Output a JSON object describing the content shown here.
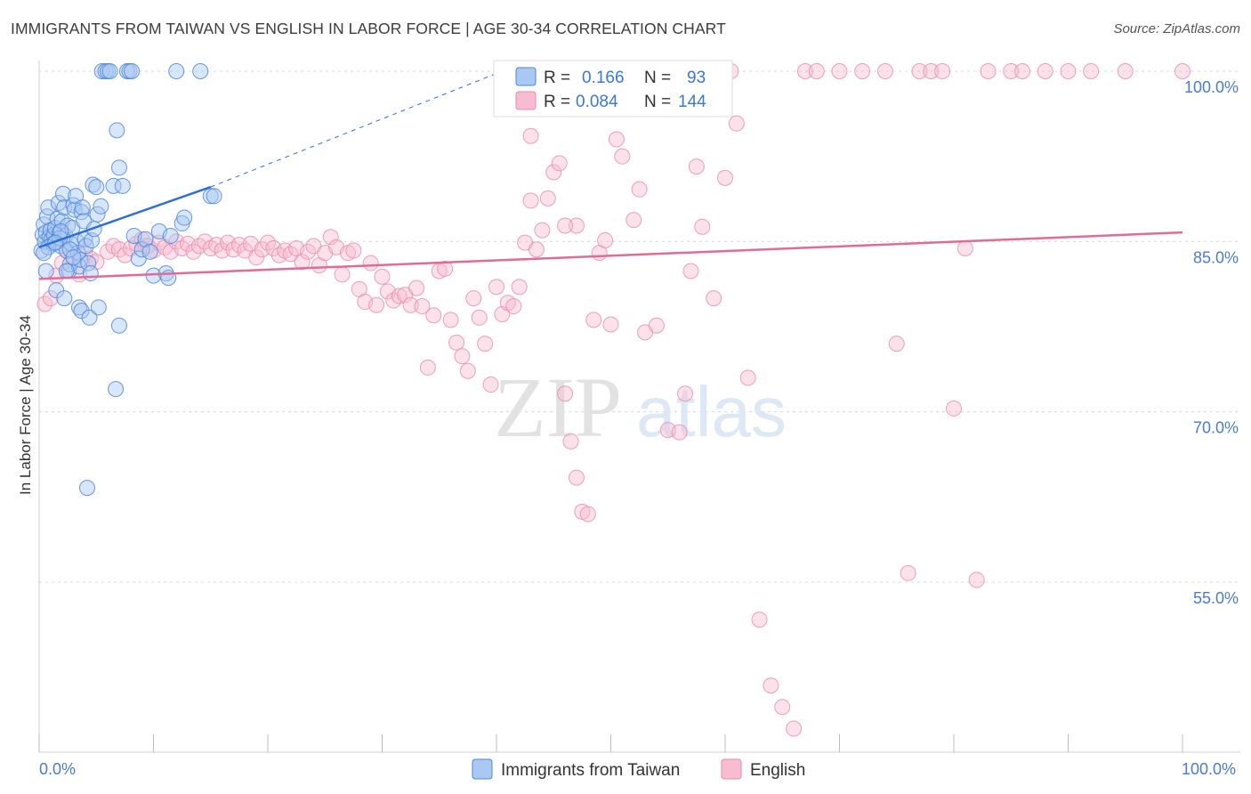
{
  "header": {
    "title": "IMMIGRANTS FROM TAIWAN VS ENGLISH IN LABOR FORCE | AGE 30-34 CORRELATION CHART",
    "source": "Source: ZipAtlas.com"
  },
  "watermark": {
    "zip": "ZIP",
    "atlas": "atlas"
  },
  "colors": {
    "taiwan_fill": "#a9c8f2",
    "taiwan_stroke": "#4f86da",
    "taiwan_line": "#2f6fd6",
    "english_fill": "#f7bcd0",
    "english_stroke": "#e98aa9",
    "english_line": "#e06c96",
    "grid": "#d8d8d8",
    "axis_label": "#4a7bd0"
  },
  "stats_box": {
    "rows": [
      {
        "r_label": "R =",
        "r_value": "0.166",
        "n_label": "N =",
        "n_value": "93"
      },
      {
        "r_label": "R =",
        "r_value": "0.084",
        "n_label": "N =",
        "n_value": "144"
      }
    ]
  },
  "chart_data": {
    "type": "scatter",
    "xlabel": "",
    "ylabel": "In Labor Force | Age 30-34",
    "xlim": [
      0,
      100
    ],
    "ylim": [
      40,
      102
    ],
    "x_tick_labels": [
      "0.0%",
      "100.0%"
    ],
    "y_tick_labels": [
      {
        "value": 100,
        "label": "100.0%"
      },
      {
        "value": 85,
        "label": "85.0%"
      },
      {
        "value": 70,
        "label": "70.0%"
      },
      {
        "value": 55,
        "label": "55.0%"
      }
    ],
    "grid": true,
    "legend_position": "bottom-center",
    "series": [
      {
        "name": "Immigrants from Taiwan",
        "trend": {
          "x": [
            0,
            15
          ],
          "y": [
            84.5,
            89.8
          ],
          "extended_to": [
            40,
            99.8
          ]
        },
        "points": [
          [
            0.2,
            84.2
          ],
          [
            0.3,
            85.6
          ],
          [
            0.4,
            86.5
          ],
          [
            0.5,
            85.0
          ],
          [
            0.6,
            85.8
          ],
          [
            0.7,
            87.2
          ],
          [
            0.8,
            88.0
          ],
          [
            0.9,
            85.4
          ],
          [
            1.0,
            86.0
          ],
          [
            1.1,
            85.2
          ],
          [
            1.2,
            84.8
          ],
          [
            1.3,
            85.6
          ],
          [
            1.4,
            86.2
          ],
          [
            1.5,
            85.0
          ],
          [
            1.6,
            87.0
          ],
          [
            1.7,
            88.4
          ],
          [
            1.8,
            85.8
          ],
          [
            1.9,
            84.6
          ],
          [
            2.0,
            86.8
          ],
          [
            2.1,
            89.2
          ],
          [
            2.2,
            88.0
          ],
          [
            2.3,
            85.5
          ],
          [
            2.4,
            84.2
          ],
          [
            2.5,
            86.4
          ],
          [
            2.6,
            82.4
          ],
          [
            2.7,
            83.0
          ],
          [
            2.8,
            84.8
          ],
          [
            2.9,
            86.2
          ],
          [
            3.0,
            88.2
          ],
          [
            3.1,
            87.8
          ],
          [
            3.2,
            89.0
          ],
          [
            3.3,
            85.0
          ],
          [
            3.4,
            84.0
          ],
          [
            3.5,
            82.8
          ],
          [
            3.6,
            83.4
          ],
          [
            3.7,
            87.6
          ],
          [
            3.8,
            88.0
          ],
          [
            3.9,
            86.8
          ],
          [
            4.0,
            85.2
          ],
          [
            4.1,
            84.6
          ],
          [
            1.8,
            85.3
          ],
          [
            1.5,
            80.7
          ],
          [
            2.2,
            80.0
          ],
          [
            2.7,
            84.3
          ],
          [
            3.5,
            79.2
          ],
          [
            3.7,
            78.9
          ],
          [
            4.3,
            83.1
          ],
          [
            4.5,
            82.2
          ],
          [
            4.7,
            90.0
          ],
          [
            5.0,
            89.8
          ],
          [
            1.9,
            85.9
          ],
          [
            4.2,
            63.3
          ],
          [
            4.4,
            78.3
          ],
          [
            4.6,
            85.1
          ],
          [
            4.8,
            86.1
          ],
          [
            5.1,
            87.4
          ],
          [
            5.2,
            79.2
          ],
          [
            5.4,
            88.1
          ],
          [
            5.5,
            100
          ],
          [
            5.8,
            100
          ],
          [
            6.0,
            100
          ],
          [
            6.2,
            100
          ],
          [
            6.5,
            89.9
          ],
          [
            6.8,
            94.8
          ],
          [
            7.0,
            91.5
          ],
          [
            7.3,
            89.9
          ],
          [
            7.7,
            100
          ],
          [
            7.9,
            100
          ],
          [
            8.1,
            100
          ],
          [
            8.3,
            85.5
          ],
          [
            8.7,
            83.5
          ],
          [
            9.0,
            84.3
          ],
          [
            9.3,
            85.2
          ],
          [
            9.7,
            84.1
          ],
          [
            10.0,
            82.0
          ],
          [
            10.5,
            85.9
          ],
          [
            11.1,
            82.2
          ],
          [
            11.3,
            81.8
          ],
          [
            11.5,
            85.5
          ],
          [
            12.0,
            100
          ],
          [
            12.5,
            86.6
          ],
          [
            12.7,
            87.1
          ],
          [
            14.1,
            100
          ],
          [
            15.0,
            89.0
          ],
          [
            15.3,
            89.0
          ],
          [
            0.8,
            84.5
          ],
          [
            1.4,
            84.9
          ],
          [
            0.6,
            82.4
          ],
          [
            2.4,
            82.4
          ],
          [
            3.0,
            83.6
          ],
          [
            6.7,
            72.0
          ],
          [
            7.0,
            77.6
          ],
          [
            0.4,
            84.0
          ]
        ]
      },
      {
        "name": "English",
        "trend": {
          "x": [
            0,
            100
          ],
          "y": [
            81.7,
            85.8
          ]
        },
        "points": [
          [
            0.5,
            79.5
          ],
          [
            1.0,
            80.0
          ],
          [
            1.5,
            82.0
          ],
          [
            2.0,
            83.1
          ],
          [
            2.5,
            84.1
          ],
          [
            3.0,
            83.3
          ],
          [
            3.5,
            82.1
          ],
          [
            4.0,
            84.0
          ],
          [
            4.5,
            83.5
          ],
          [
            5.0,
            83.2
          ],
          [
            6.0,
            84.1
          ],
          [
            6.5,
            84.6
          ],
          [
            7.0,
            84.3
          ],
          [
            7.5,
            83.8
          ],
          [
            8.0,
            84.4
          ],
          [
            8.5,
            84.8
          ],
          [
            9.0,
            85.2
          ],
          [
            9.5,
            84.6
          ],
          [
            10.0,
            84.2
          ],
          [
            10.5,
            84.9
          ],
          [
            11.0,
            84.5
          ],
          [
            11.5,
            84.1
          ],
          [
            12.0,
            85.0
          ],
          [
            12.5,
            84.4
          ],
          [
            13.0,
            84.8
          ],
          [
            13.5,
            84.1
          ],
          [
            14.0,
            84.6
          ],
          [
            14.5,
            85.0
          ],
          [
            15.0,
            84.4
          ],
          [
            15.5,
            84.7
          ],
          [
            16.0,
            84.2
          ],
          [
            16.5,
            84.9
          ],
          [
            17.0,
            84.3
          ],
          [
            17.5,
            84.7
          ],
          [
            18.0,
            84.2
          ],
          [
            18.5,
            84.8
          ],
          [
            19.0,
            83.6
          ],
          [
            19.5,
            84.3
          ],
          [
            20.0,
            84.9
          ],
          [
            20.5,
            84.4
          ],
          [
            21.0,
            83.8
          ],
          [
            21.5,
            84.2
          ],
          [
            22.0,
            83.9
          ],
          [
            22.5,
            84.4
          ],
          [
            23.0,
            83.2
          ],
          [
            23.5,
            84.1
          ],
          [
            24.0,
            84.6
          ],
          [
            24.5,
            82.9
          ],
          [
            25.0,
            84.0
          ],
          [
            25.5,
            85.4
          ],
          [
            26.0,
            84.5
          ],
          [
            26.5,
            82.1
          ],
          [
            27.0,
            84.0
          ],
          [
            27.5,
            84.2
          ],
          [
            28.0,
            80.8
          ],
          [
            28.5,
            79.7
          ],
          [
            29.0,
            83.1
          ],
          [
            29.5,
            79.4
          ],
          [
            30.0,
            81.9
          ],
          [
            30.5,
            80.6
          ],
          [
            31.0,
            79.8
          ],
          [
            31.5,
            80.2
          ],
          [
            32.0,
            80.3
          ],
          [
            32.5,
            79.4
          ],
          [
            33.0,
            80.9
          ],
          [
            33.5,
            79.3
          ],
          [
            34.0,
            73.9
          ],
          [
            34.5,
            78.5
          ],
          [
            35.0,
            82.4
          ],
          [
            35.5,
            82.6
          ],
          [
            36.0,
            78.1
          ],
          [
            36.5,
            76.1
          ],
          [
            37.0,
            74.9
          ],
          [
            37.5,
            73.6
          ],
          [
            38.0,
            80.0
          ],
          [
            38.5,
            78.3
          ],
          [
            39.0,
            76.0
          ],
          [
            39.5,
            72.4
          ],
          [
            40.0,
            81.0
          ],
          [
            40.5,
            78.6
          ],
          [
            41.0,
            79.6
          ],
          [
            41.5,
            79.3
          ],
          [
            42.0,
            81.0
          ],
          [
            42.5,
            84.9
          ],
          [
            43.0,
            88.6
          ],
          [
            43.5,
            84.3
          ],
          [
            44.0,
            86.0
          ],
          [
            44.5,
            88.8
          ],
          [
            45.0,
            91.1
          ],
          [
            45.5,
            91.9
          ],
          [
            46.0,
            71.6
          ],
          [
            46.5,
            67.4
          ],
          [
            47.0,
            64.2
          ],
          [
            47.5,
            61.2
          ],
          [
            48.0,
            61.0
          ],
          [
            48.5,
            78.1
          ],
          [
            49.0,
            84.0
          ],
          [
            49.5,
            85.1
          ],
          [
            50.0,
            77.7
          ],
          [
            50.5,
            94.0
          ],
          [
            51.0,
            92.5
          ],
          [
            52.0,
            86.9
          ],
          [
            53.0,
            77.0
          ],
          [
            54.0,
            77.6
          ],
          [
            55.0,
            68.4
          ],
          [
            56.0,
            68.2
          ],
          [
            56.5,
            71.6
          ],
          [
            57.0,
            82.4
          ],
          [
            57.5,
            91.6
          ],
          [
            58.0,
            86.3
          ],
          [
            59.0,
            80.0
          ],
          [
            60.0,
            90.6
          ],
          [
            61.0,
            95.4
          ],
          [
            62.0,
            73.0
          ],
          [
            63.0,
            51.7
          ],
          [
            64.0,
            45.9
          ],
          [
            65.0,
            44.0
          ],
          [
            66.0,
            42.1
          ],
          [
            67.0,
            100
          ],
          [
            68.0,
            100
          ],
          [
            70.0,
            100
          ],
          [
            72.0,
            100
          ],
          [
            74.0,
            100
          ],
          [
            75.0,
            76.0
          ],
          [
            76.0,
            55.8
          ],
          [
            77.0,
            100
          ],
          [
            78.0,
            100
          ],
          [
            79.0,
            100
          ],
          [
            80.0,
            70.3
          ],
          [
            81.0,
            84.4
          ],
          [
            82.0,
            55.2
          ],
          [
            83.0,
            100
          ],
          [
            85.0,
            100
          ],
          [
            86.0,
            100
          ],
          [
            88.0,
            100
          ],
          [
            90.0,
            100
          ],
          [
            92.0,
            100
          ],
          [
            95.0,
            100
          ],
          [
            100.0,
            100
          ],
          [
            60.5,
            100
          ],
          [
            47.0,
            86.4
          ],
          [
            52.5,
            89.6
          ],
          [
            43.0,
            94.3
          ],
          [
            46.0,
            86.4
          ]
        ]
      }
    ]
  },
  "legend": {
    "items": [
      {
        "label": "Immigrants from Taiwan"
      },
      {
        "label": "English"
      }
    ]
  }
}
